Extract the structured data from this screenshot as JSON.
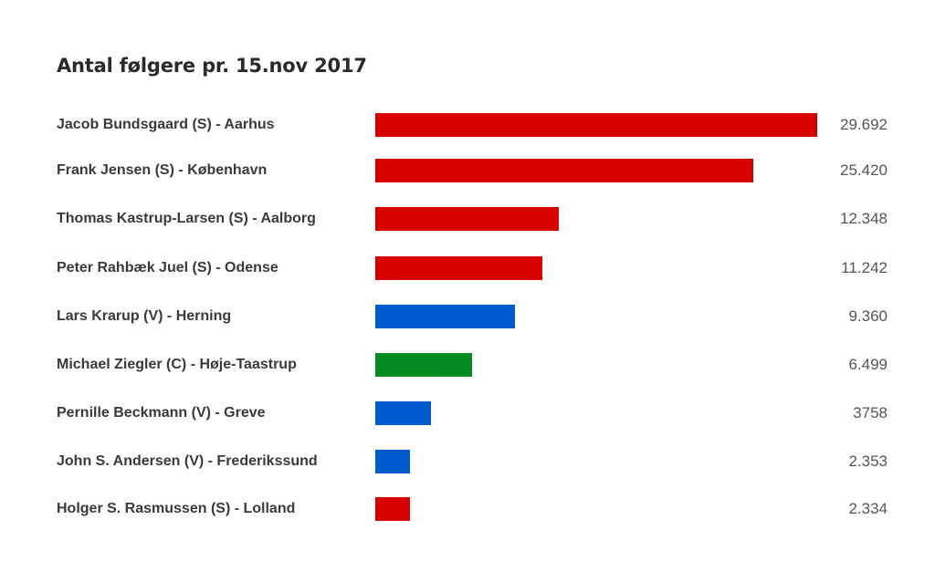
{
  "chart_data": {
    "type": "bar",
    "orientation": "horizontal",
    "title": "Antal følgere pr. 15.nov 2017",
    "xlabel": "",
    "ylabel": "",
    "xlim": [
      0,
      29692
    ],
    "grid": false,
    "categories": [
      "Jacob Bundsgaard (S) - Aarhus",
      "Frank Jensen (S) - København",
      "Thomas Kastrup-Larsen (S) - Aalborg",
      "Peter Rahbæk Juel (S) - Odense",
      "Lars Krarup (V) - Herning",
      "Michael Ziegler (C) - Høje-Taastrup",
      "Pernille Beckmann (V) - Greve",
      "John S. Andersen (V) - Frederikssund",
      "Holger S. Rasmussen (S) - Lolland"
    ],
    "values": [
      29692,
      25420,
      12348,
      11242,
      9360,
      6499,
      3758,
      2353,
      2334
    ],
    "value_labels": [
      "29.692",
      "25.420",
      "12.348",
      "11.242",
      "9.360",
      "6.499",
      "3758",
      "2.353",
      "2.334"
    ],
    "colors": [
      "#d90000",
      "#d90000",
      "#d90000",
      "#d90000",
      "#005ccc",
      "#008a1f",
      "#005ccc",
      "#005ccc",
      "#d90000"
    ]
  }
}
